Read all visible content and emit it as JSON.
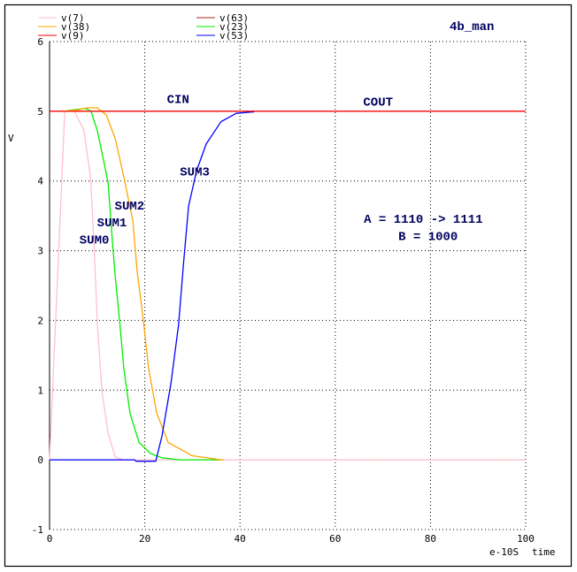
{
  "chart_data": {
    "type": "line",
    "title": "4b_man",
    "xlabel": "time",
    "x_unit": "e-10S",
    "ylabel": "V",
    "xlim": [
      0,
      100
    ],
    "ylim": [
      -1,
      6
    ],
    "x_ticks": [
      "0",
      "20",
      "40",
      "60",
      "80",
      "100"
    ],
    "y_ticks": [
      "6",
      "5",
      "4",
      "3",
      "2",
      "1",
      "0",
      "-1"
    ],
    "grid": true,
    "legend_position": "top",
    "series": [
      {
        "name": "v(63)",
        "color": "#b22222",
        "x": [
          0,
          100
        ],
        "y": [
          5,
          5
        ]
      },
      {
        "name": "v(7)",
        "color": "#ffc0cb",
        "x": [
          0,
          3.2,
          5.2,
          7.2,
          8.6,
          9.4,
          10,
          11,
          12.3,
          13.8,
          15.4,
          100
        ],
        "y": [
          0,
          5,
          5,
          4.73,
          4.06,
          3.0,
          2.0,
          0.98,
          0.38,
          0.04,
          0,
          0
        ]
      },
      {
        "name": "v(23)",
        "color": "#00ee00",
        "x": [
          3,
          5,
          7.6,
          8.7,
          10,
          11.3,
          12.3,
          13.2,
          13.8,
          14.7,
          15.6,
          16.9,
          18.8,
          21.2,
          23.6,
          27.3,
          36
        ],
        "y": [
          5,
          5.02,
          5.04,
          5.0,
          4.73,
          4.31,
          3.97,
          3.13,
          2.63,
          2.0,
          1.31,
          0.67,
          0.25,
          0.09,
          0.03,
          0,
          0
        ]
      },
      {
        "name": "v(38)",
        "color": "#ffa500",
        "x": [
          3,
          6,
          8,
          10,
          11.9,
          13.8,
          15.6,
          17.5,
          18.4,
          19.7,
          20.8,
          22.5,
          24.9,
          29.9,
          36,
          36.6
        ],
        "y": [
          5,
          5.02,
          5.05,
          5.05,
          4.95,
          4.61,
          4.06,
          3.43,
          2.7,
          2.0,
          1.31,
          0.67,
          0.25,
          0.06,
          0,
          0
        ]
      },
      {
        "name": "v(53)",
        "color": "#0000ff",
        "x": [
          0,
          17.8,
          18.2,
          22.3,
          23.6,
          25.5,
          27.1,
          28.1,
          29.2,
          30.9,
          32.9,
          36,
          39.2,
          42.6,
          43
        ],
        "y": [
          0,
          0,
          -0.02,
          -0.02,
          0.34,
          1.1,
          1.94,
          2.79,
          3.64,
          4.15,
          4.53,
          4.85,
          4.97,
          4.99,
          4.99
        ]
      },
      {
        "name": "v(9)",
        "color": "#ff0000",
        "x": [
          0,
          100
        ],
        "y": [
          5,
          5
        ]
      }
    ],
    "legend_order": [
      "v(7)",
      "v(38)",
      "v(9)",
      "v(63)",
      "v(23)",
      "v(53)"
    ],
    "annotations": [
      {
        "text": "CIN",
        "x": 27,
        "y": 5.12
      },
      {
        "text": "COUT",
        "x": 69,
        "y": 5.08
      },
      {
        "text": "SUM3",
        "x": 30.5,
        "y": 4.08
      },
      {
        "text": "SUM2",
        "x": 16.8,
        "y": 3.59
      },
      {
        "text": "SUM1",
        "x": 13.1,
        "y": 3.35
      },
      {
        "text": "SUM0",
        "x": 9.4,
        "y": 3.1
      },
      {
        "text": "A = 1110 -> 1111",
        "x": 78.5,
        "y": 3.4
      },
      {
        "text": "B = 1000",
        "x": 79.5,
        "y": 3.15
      }
    ]
  }
}
